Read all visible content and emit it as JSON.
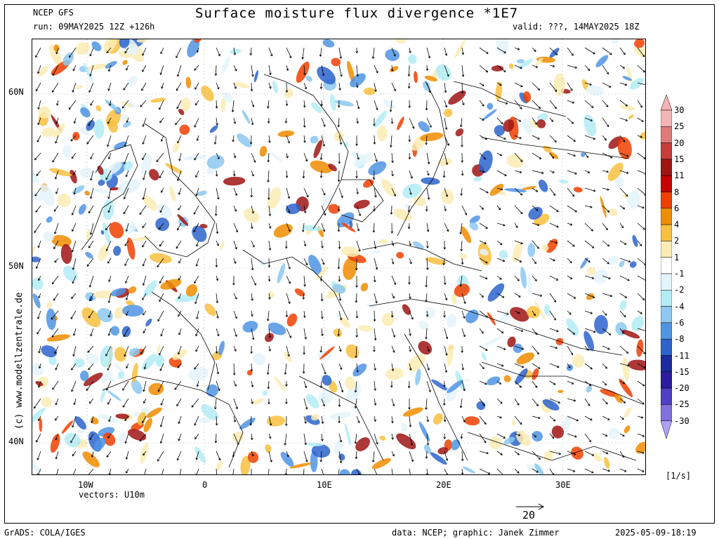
{
  "header": {
    "model": "NCEP GFS",
    "run": "run: 09MAY2025 12Z +126h",
    "title": "Surface moisture flux divergence *1E7",
    "valid": "valid: ???, 14MAY2025 18Z"
  },
  "map": {
    "lat_labels": [
      "60N",
      "50N",
      "40N"
    ],
    "lon_labels": [
      "10W",
      "0",
      "10E",
      "20E",
      "30E"
    ],
    "vectors_label": "vectors: U10m",
    "reference_vector_value": "20",
    "watermark": "(c) www.modellzentrale.de"
  },
  "colorbar": {
    "unit": "[1/s]",
    "levels": [
      "30",
      "25",
      "20",
      "15",
      "11",
      "8",
      "6",
      "4",
      "2",
      "1",
      "-1",
      "-2",
      "-4",
      "-6",
      "-8",
      "-11",
      "-15",
      "-20",
      "-25",
      "-30"
    ],
    "colors": [
      "#f4b4b4",
      "#e07a7a",
      "#c83c3c",
      "#a01414",
      "#c80000",
      "#f04000",
      "#f08c00",
      "#f8c040",
      "#fcecb4",
      "#ffffff",
      "#e4f4fc",
      "#b4ecf4",
      "#8cc8f0",
      "#5094e4",
      "#2c64cc",
      "#1c2ca0",
      "#2c1ca0",
      "#5040c8",
      "#8070e0",
      "#b0a0f4"
    ]
  },
  "footer": {
    "left": "GrADS: COLA/IGES",
    "credit": "data: NCEP; graphic: Janek Zimmer",
    "timestamp": "2025-05-09-18:19"
  }
}
